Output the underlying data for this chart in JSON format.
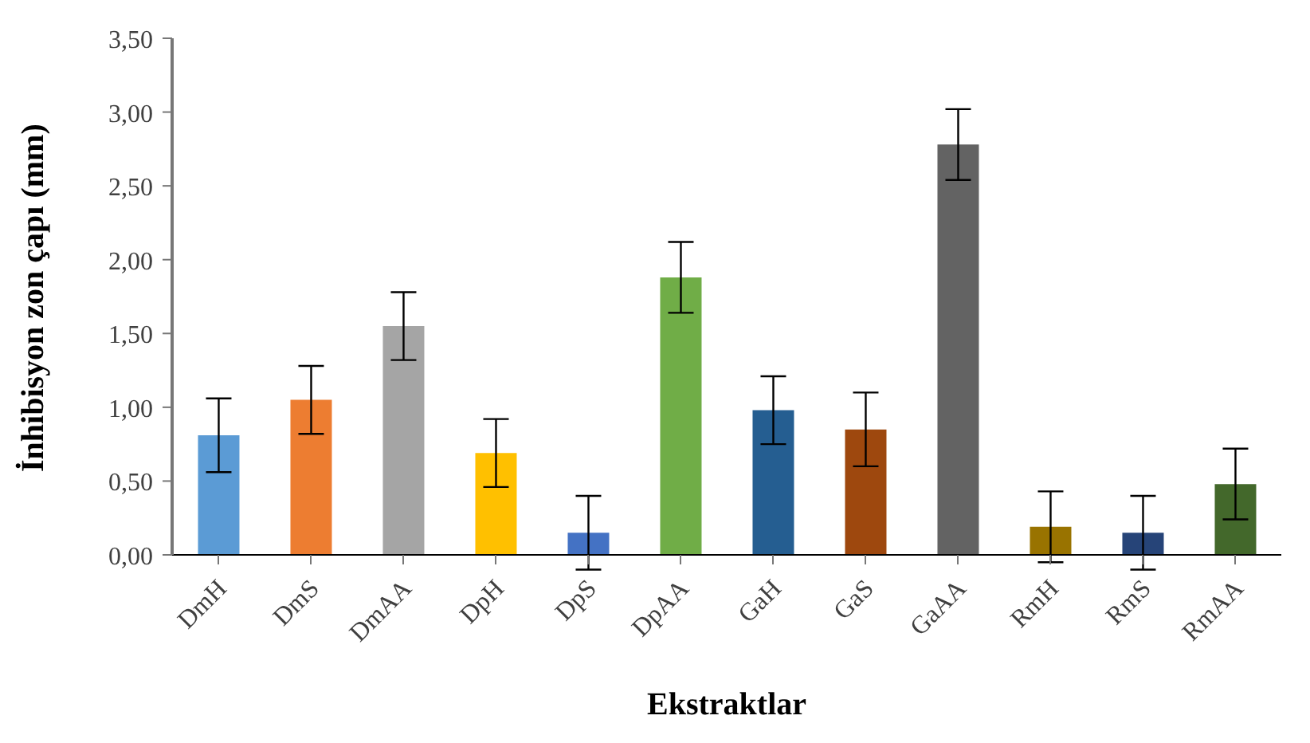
{
  "chart_data": {
    "type": "bar",
    "xlabel": "Ekstraktlar",
    "ylabel": "İnhibisyon zon çapı (mm)",
    "categories": [
      "DmH",
      "DmS",
      "DmAA",
      "DpH",
      "DpS",
      "DpAA",
      "GaH",
      "GaS",
      "GaAA",
      "RmH",
      "RmS",
      "RmAA"
    ],
    "values": [
      0.81,
      1.05,
      1.55,
      0.69,
      0.15,
      1.88,
      0.98,
      0.85,
      2.78,
      0.19,
      0.15,
      0.48
    ],
    "errors": [
      0.25,
      0.23,
      0.23,
      0.23,
      0.25,
      0.24,
      0.23,
      0.25,
      0.24,
      0.24,
      0.25,
      0.24
    ],
    "colors": [
      "#5b9bd5",
      "#ed7d31",
      "#a5a5a5",
      "#ffc000",
      "#4472c4",
      "#70ad47",
      "#255e91",
      "#9e480e",
      "#636363",
      "#997300",
      "#264478",
      "#43682b"
    ],
    "ylim": [
      0,
      3.5
    ],
    "yticks": [
      {
        "value": 0,
        "label": "0,00"
      },
      {
        "value": 0.5,
        "label": "0,50"
      },
      {
        "value": 1,
        "label": "1,00"
      },
      {
        "value": 1.5,
        "label": "1,50"
      },
      {
        "value": 2,
        "label": "2,00"
      },
      {
        "value": 2.5,
        "label": "2,50"
      },
      {
        "value": 3,
        "label": "3,00"
      },
      {
        "value": 3.5,
        "label": "3,50"
      }
    ],
    "grid": false,
    "legend": false
  }
}
